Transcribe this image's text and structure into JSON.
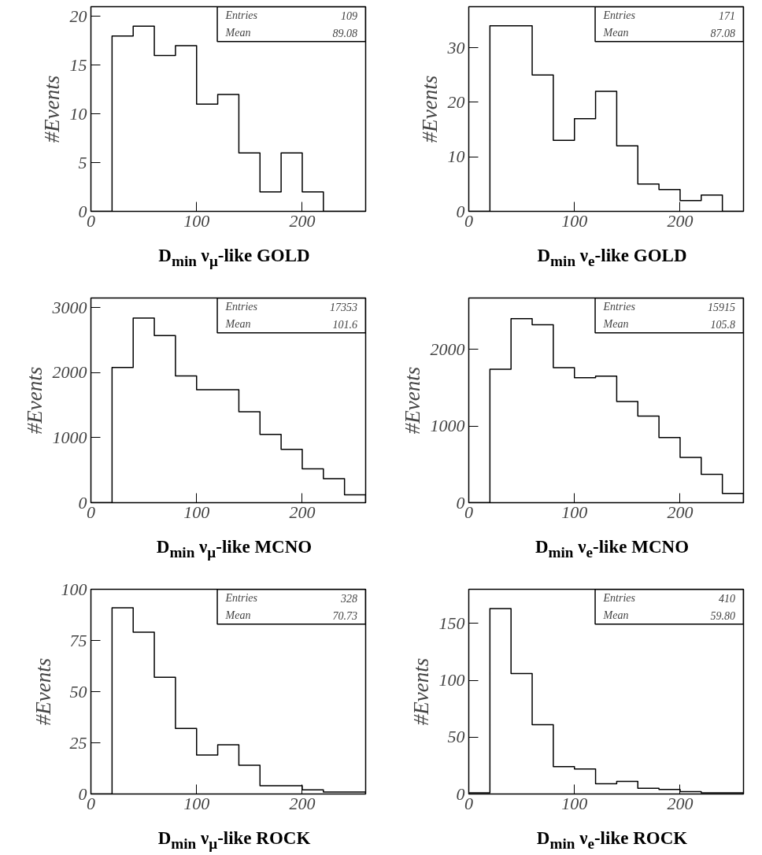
{
  "chart_data": [
    {
      "type": "histogram",
      "bins": [
        0,
        20,
        40,
        60,
        80,
        100,
        120,
        140,
        160,
        180,
        200,
        220,
        240,
        260
      ],
      "values": [
        0,
        18,
        19,
        16,
        17,
        11,
        12,
        6,
        2,
        6,
        2,
        0,
        0
      ],
      "color": "#000000",
      "xlabel": "D$_{min}$ ν$_{μ}$-like GOLD",
      "ylabel": "#Events",
      "xlim": [
        0,
        260
      ],
      "ylim": [
        0,
        21
      ],
      "xticks": [
        0,
        100,
        200
      ],
      "yticks": [
        0,
        5,
        10,
        15,
        20
      ],
      "annotations": [
        "Entries 109",
        "Mean 89.08"
      ]
    },
    {
      "type": "histogram",
      "bins": [
        0,
        20,
        40,
        60,
        80,
        100,
        120,
        140,
        160,
        180,
        200,
        220,
        240,
        260
      ],
      "values": [
        0,
        34,
        34,
        25,
        13,
        17,
        22,
        12,
        5,
        4,
        2,
        3,
        0
      ],
      "color": "#000000",
      "xlabel": "D$_{min}$ ν$_{e}$-like GOLD",
      "ylabel": "#Events",
      "xlim": [
        0,
        260
      ],
      "ylim": [
        0,
        37.5
      ],
      "xticks": [
        0,
        100,
        200
      ],
      "yticks": [
        0,
        10,
        20,
        30
      ],
      "annotations": [
        "Entries 171",
        "Mean 87.08"
      ]
    },
    {
      "type": "histogram",
      "bins": [
        0,
        20,
        40,
        60,
        80,
        100,
        120,
        140,
        160,
        180,
        200,
        220,
        240,
        260
      ],
      "values": [
        0,
        2080,
        2840,
        2570,
        1950,
        1740,
        1740,
        1400,
        1050,
        820,
        520,
        370,
        120
      ],
      "color": "#000000",
      "xlabel": "D$_{min}$ ν$_{μ}$-like MCNO",
      "ylabel": "#Events",
      "xlim": [
        0,
        260
      ],
      "ylim": [
        0,
        3150
      ],
      "xticks": [
        0,
        100,
        200
      ],
      "yticks": [
        0,
        1000,
        2000,
        3000
      ],
      "annotations": [
        "Entries 17353",
        "Mean 101.6"
      ]
    },
    {
      "type": "histogram",
      "bins": [
        0,
        20,
        40,
        60,
        80,
        100,
        120,
        140,
        160,
        180,
        200,
        220,
        240,
        260
      ],
      "values": [
        0,
        1740,
        2400,
        2320,
        1760,
        1630,
        1650,
        1320,
        1130,
        850,
        590,
        370,
        120
      ],
      "color": "#000000",
      "xlabel": "D$_{min}$ ν$_{e}$-like MCNO",
      "ylabel": "#Events",
      "xlim": [
        0,
        260
      ],
      "ylim": [
        0,
        2670
      ],
      "xticks": [
        0,
        100,
        200
      ],
      "yticks": [
        0,
        1000,
        2000
      ],
      "annotations": [
        "Entries 15915",
        "Mean 105.8"
      ]
    },
    {
      "type": "histogram",
      "bins": [
        0,
        20,
        40,
        60,
        80,
        100,
        120,
        140,
        160,
        180,
        200,
        220,
        240,
        260
      ],
      "values": [
        0,
        91,
        79,
        57,
        32,
        19,
        24,
        14,
        4,
        4,
        2,
        1,
        1
      ],
      "color": "#000000",
      "xlabel": "D$_{min}$ ν$_{μ}$-like ROCK",
      "ylabel": "#Events",
      "xlim": [
        0,
        260
      ],
      "ylim": [
        0,
        100
      ],
      "xticks": [
        0,
        100,
        200
      ],
      "yticks": [
        0,
        25,
        50,
        75,
        100
      ],
      "annotations": [
        "Entries 328",
        "Mean 70.73"
      ]
    },
    {
      "type": "histogram",
      "bins": [
        0,
        20,
        40,
        60,
        80,
        100,
        120,
        140,
        160,
        180,
        200,
        220,
        240,
        260
      ],
      "values": [
        1,
        163,
        106,
        61,
        24,
        22,
        9,
        11,
        5,
        4,
        2,
        1,
        1
      ],
      "color": "#000000",
      "xlabel": "D$_{min}$ ν$_{e}$-like ROCK",
      "ylabel": "#Events",
      "xlim": [
        0,
        260
      ],
      "ylim": [
        0,
        180
      ],
      "xticks": [
        0,
        100,
        200
      ],
      "yticks": [
        0,
        50,
        100,
        150
      ],
      "annotations": [
        "Entries 410",
        "Mean 59.80"
      ]
    }
  ]
}
